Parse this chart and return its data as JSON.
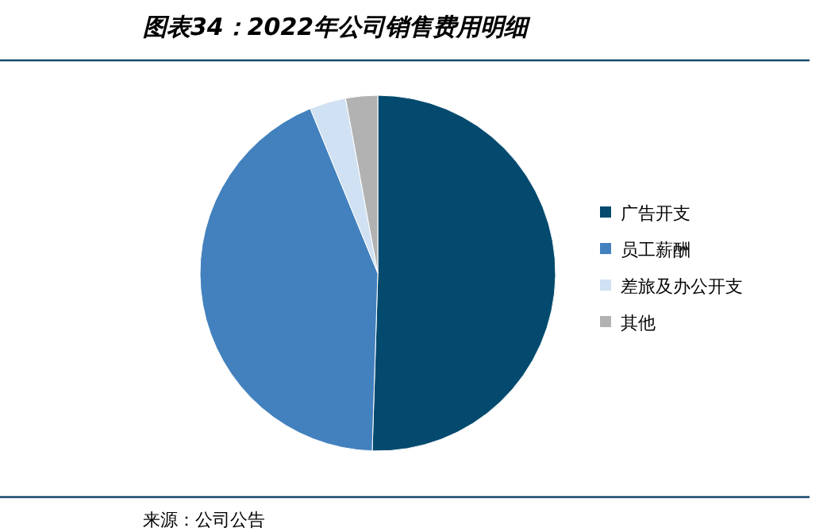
{
  "chart_data": {
    "type": "pie",
    "title": "图表34：2022年公司销售费用明细",
    "categories": [
      "广告开支",
      "员工薪酬",
      "差旅及办公开支",
      "其他"
    ],
    "values": [
      50.5,
      43.3,
      3.3,
      2.9
    ],
    "colors": [
      "#034a6e",
      "#4381be",
      "#cfe1f2",
      "#b2b2b2"
    ],
    "legend": "right",
    "annotations": [
      "来源：公司公告"
    ]
  }
}
